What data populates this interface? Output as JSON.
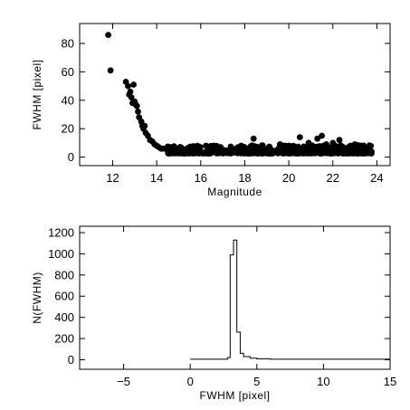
{
  "chart_data": [
    {
      "type": "scatter",
      "xlabel": "Magnitude",
      "ylabel": "FWHM [pixel]",
      "xlim": [
        10.5,
        24.6
      ],
      "ylim": [
        -6,
        94
      ],
      "xticks": [
        12,
        14,
        16,
        18,
        20,
        22,
        24
      ],
      "yticks": [
        0,
        20,
        40,
        60,
        80
      ],
      "grid": false,
      "points": [
        [
          11.8,
          86
        ],
        [
          11.9,
          61
        ],
        [
          12.6,
          53
        ],
        [
          12.7,
          50
        ],
        [
          12.75,
          44
        ],
        [
          12.8,
          46
        ],
        [
          12.85,
          42
        ],
        [
          12.9,
          38
        ],
        [
          12.95,
          51
        ],
        [
          13.0,
          39
        ],
        [
          13.05,
          37
        ],
        [
          13.1,
          36
        ],
        [
          13.15,
          32
        ],
        [
          13.2,
          28
        ],
        [
          13.3,
          25
        ],
        [
          13.35,
          22
        ],
        [
          13.4,
          20
        ],
        [
          13.45,
          22
        ],
        [
          13.5,
          17
        ],
        [
          13.6,
          15
        ],
        [
          13.7,
          12
        ],
        [
          13.8,
          11
        ],
        [
          13.9,
          9
        ],
        [
          14.0,
          8
        ],
        [
          14.1,
          7
        ],
        [
          14.2,
          6
        ],
        [
          14.3,
          6
        ],
        [
          14.5,
          5
        ],
        [
          14.7,
          5
        ],
        [
          15.0,
          4.5
        ],
        [
          15.3,
          4
        ],
        [
          15.5,
          7
        ],
        [
          16.6,
          8
        ],
        [
          17.6,
          6
        ],
        [
          18.4,
          13
        ],
        [
          18.6,
          5
        ],
        [
          19.1,
          7
        ],
        [
          19.6,
          9
        ],
        [
          20.0,
          8
        ],
        [
          20.5,
          14
        ],
        [
          20.9,
          10
        ],
        [
          21.3,
          13
        ],
        [
          21.5,
          15
        ],
        [
          21.7,
          9
        ],
        [
          22.0,
          10
        ],
        [
          22.3,
          12
        ],
        [
          22.8,
          8
        ],
        [
          23.0,
          9
        ],
        [
          23.3,
          7
        ],
        [
          23.5,
          6
        ],
        [
          23.7,
          4
        ]
      ],
      "band": {
        "from": 14.5,
        "to": 23.8,
        "low": 1,
        "high": 7
      }
    },
    {
      "type": "histogram",
      "xlabel": "FWHM [pixel]",
      "ylabel": "N(FWHM)",
      "xlim": [
        -8.3,
        15
      ],
      "ylim": [
        -90,
        1260
      ],
      "xticks": [
        -5,
        0,
        5,
        10,
        15
      ],
      "yticks": [
        0,
        200,
        400,
        600,
        800,
        1000,
        1200
      ],
      "grid": false,
      "bin_edges": [
        0,
        2.8,
        3.0,
        3.25,
        3.5,
        3.75,
        4.0,
        4.5,
        5.0,
        6.0,
        15.0
      ],
      "counts": [
        5,
        20,
        990,
        1130,
        260,
        60,
        30,
        15,
        8,
        5
      ]
    }
  ]
}
